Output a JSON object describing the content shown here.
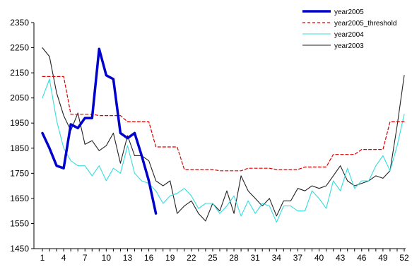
{
  "chart_data": {
    "type": "line",
    "title": "",
    "xlabel": "",
    "ylabel": "",
    "ylim": [
      1450,
      2350
    ],
    "yticks": [
      1450,
      1550,
      1650,
      1750,
      1850,
      1950,
      2050,
      2150,
      2250,
      2350
    ],
    "xlim": [
      1,
      52
    ],
    "xticks": [
      1,
      4,
      7,
      10,
      13,
      16,
      19,
      22,
      25,
      28,
      31,
      34,
      37,
      40,
      43,
      46,
      49,
      52
    ],
    "grid": false,
    "legend_position": "top-right",
    "series": [
      {
        "name": "year2005",
        "color": "#0000cc",
        "style": "solid-thick",
        "x": [
          1,
          2,
          3,
          4,
          5,
          6,
          7,
          8,
          9,
          10,
          11,
          12,
          13,
          14,
          15,
          16,
          17
        ],
        "values": [
          1910,
          1850,
          1780,
          1770,
          1945,
          1930,
          1970,
          1970,
          2245,
          2140,
          2125,
          1910,
          1890,
          1910,
          1820,
          1720,
          1590
        ]
      },
      {
        "name": "year2005_threshold",
        "color": "#dd0000",
        "style": "dashed",
        "x": [
          1,
          2,
          3,
          4,
          5,
          6,
          7,
          8,
          9,
          10,
          11,
          12,
          13,
          14,
          15,
          16,
          17,
          18,
          19,
          20,
          21,
          22,
          23,
          24,
          25,
          26,
          27,
          28,
          29,
          30,
          31,
          32,
          33,
          34,
          35,
          36,
          37,
          38,
          39,
          40,
          41,
          42,
          43,
          44,
          45,
          46,
          47,
          48,
          49,
          50,
          51,
          52
        ],
        "values": [
          2135,
          2135,
          2135,
          2135,
          1985,
          1985,
          1985,
          1985,
          1980,
          1980,
          1980,
          1980,
          1955,
          1955,
          1955,
          1955,
          1855,
          1855,
          1855,
          1855,
          1765,
          1765,
          1765,
          1765,
          1765,
          1760,
          1760,
          1760,
          1760,
          1770,
          1770,
          1770,
          1770,
          1765,
          1765,
          1765,
          1765,
          1775,
          1775,
          1775,
          1775,
          1825,
          1825,
          1825,
          1825,
          1845,
          1845,
          1845,
          1845,
          1955,
          1955,
          1955
        ]
      },
      {
        "name": "year2004",
        "color": "#33dddd",
        "style": "solid",
        "x": [
          1,
          2,
          3,
          4,
          5,
          6,
          7,
          8,
          9,
          10,
          11,
          12,
          13,
          14,
          15,
          16,
          17,
          18,
          19,
          20,
          21,
          22,
          23,
          24,
          25,
          26,
          27,
          28,
          29,
          30,
          31,
          32,
          33,
          34,
          35,
          36,
          37,
          38,
          39,
          40,
          41,
          42,
          43,
          44,
          45,
          46,
          47,
          48,
          49,
          50,
          51,
          52
        ],
        "values": [
          2050,
          2125,
          1960,
          1850,
          1800,
          1780,
          1780,
          1740,
          1780,
          1720,
          1770,
          1750,
          1860,
          1750,
          1720,
          1710,
          1680,
          1630,
          1660,
          1670,
          1690,
          1660,
          1610,
          1630,
          1630,
          1590,
          1620,
          1660,
          1580,
          1640,
          1590,
          1630,
          1620,
          1555,
          1620,
          1620,
          1600,
          1600,
          1680,
          1650,
          1610,
          1720,
          1680,
          1770,
          1690,
          1720,
          1720,
          1780,
          1820,
          1760,
          1860,
          1985
        ]
      },
      {
        "name": "year2003",
        "color": "#222222",
        "style": "solid",
        "x": [
          1,
          2,
          3,
          4,
          5,
          6,
          7,
          8,
          9,
          10,
          11,
          12,
          13,
          14,
          15,
          16,
          17,
          18,
          19,
          20,
          21,
          22,
          23,
          24,
          25,
          26,
          27,
          28,
          29,
          30,
          31,
          32,
          33,
          34,
          35,
          36,
          37,
          38,
          39,
          40,
          41,
          42,
          43,
          44,
          45,
          46,
          47,
          48,
          49,
          50,
          51,
          52
        ],
        "values": [
          2250,
          2215,
          2070,
          1980,
          1920,
          1990,
          1865,
          1880,
          1840,
          1860,
          1910,
          1790,
          1900,
          1820,
          1820,
          1800,
          1720,
          1700,
          1720,
          1590,
          1620,
          1640,
          1590,
          1560,
          1630,
          1600,
          1680,
          1590,
          1740,
          1680,
          1650,
          1620,
          1650,
          1580,
          1640,
          1640,
          1690,
          1680,
          1700,
          1690,
          1700,
          1740,
          1780,
          1720,
          1700,
          1710,
          1720,
          1740,
          1730,
          1760,
          1940,
          2140
        ]
      }
    ]
  }
}
